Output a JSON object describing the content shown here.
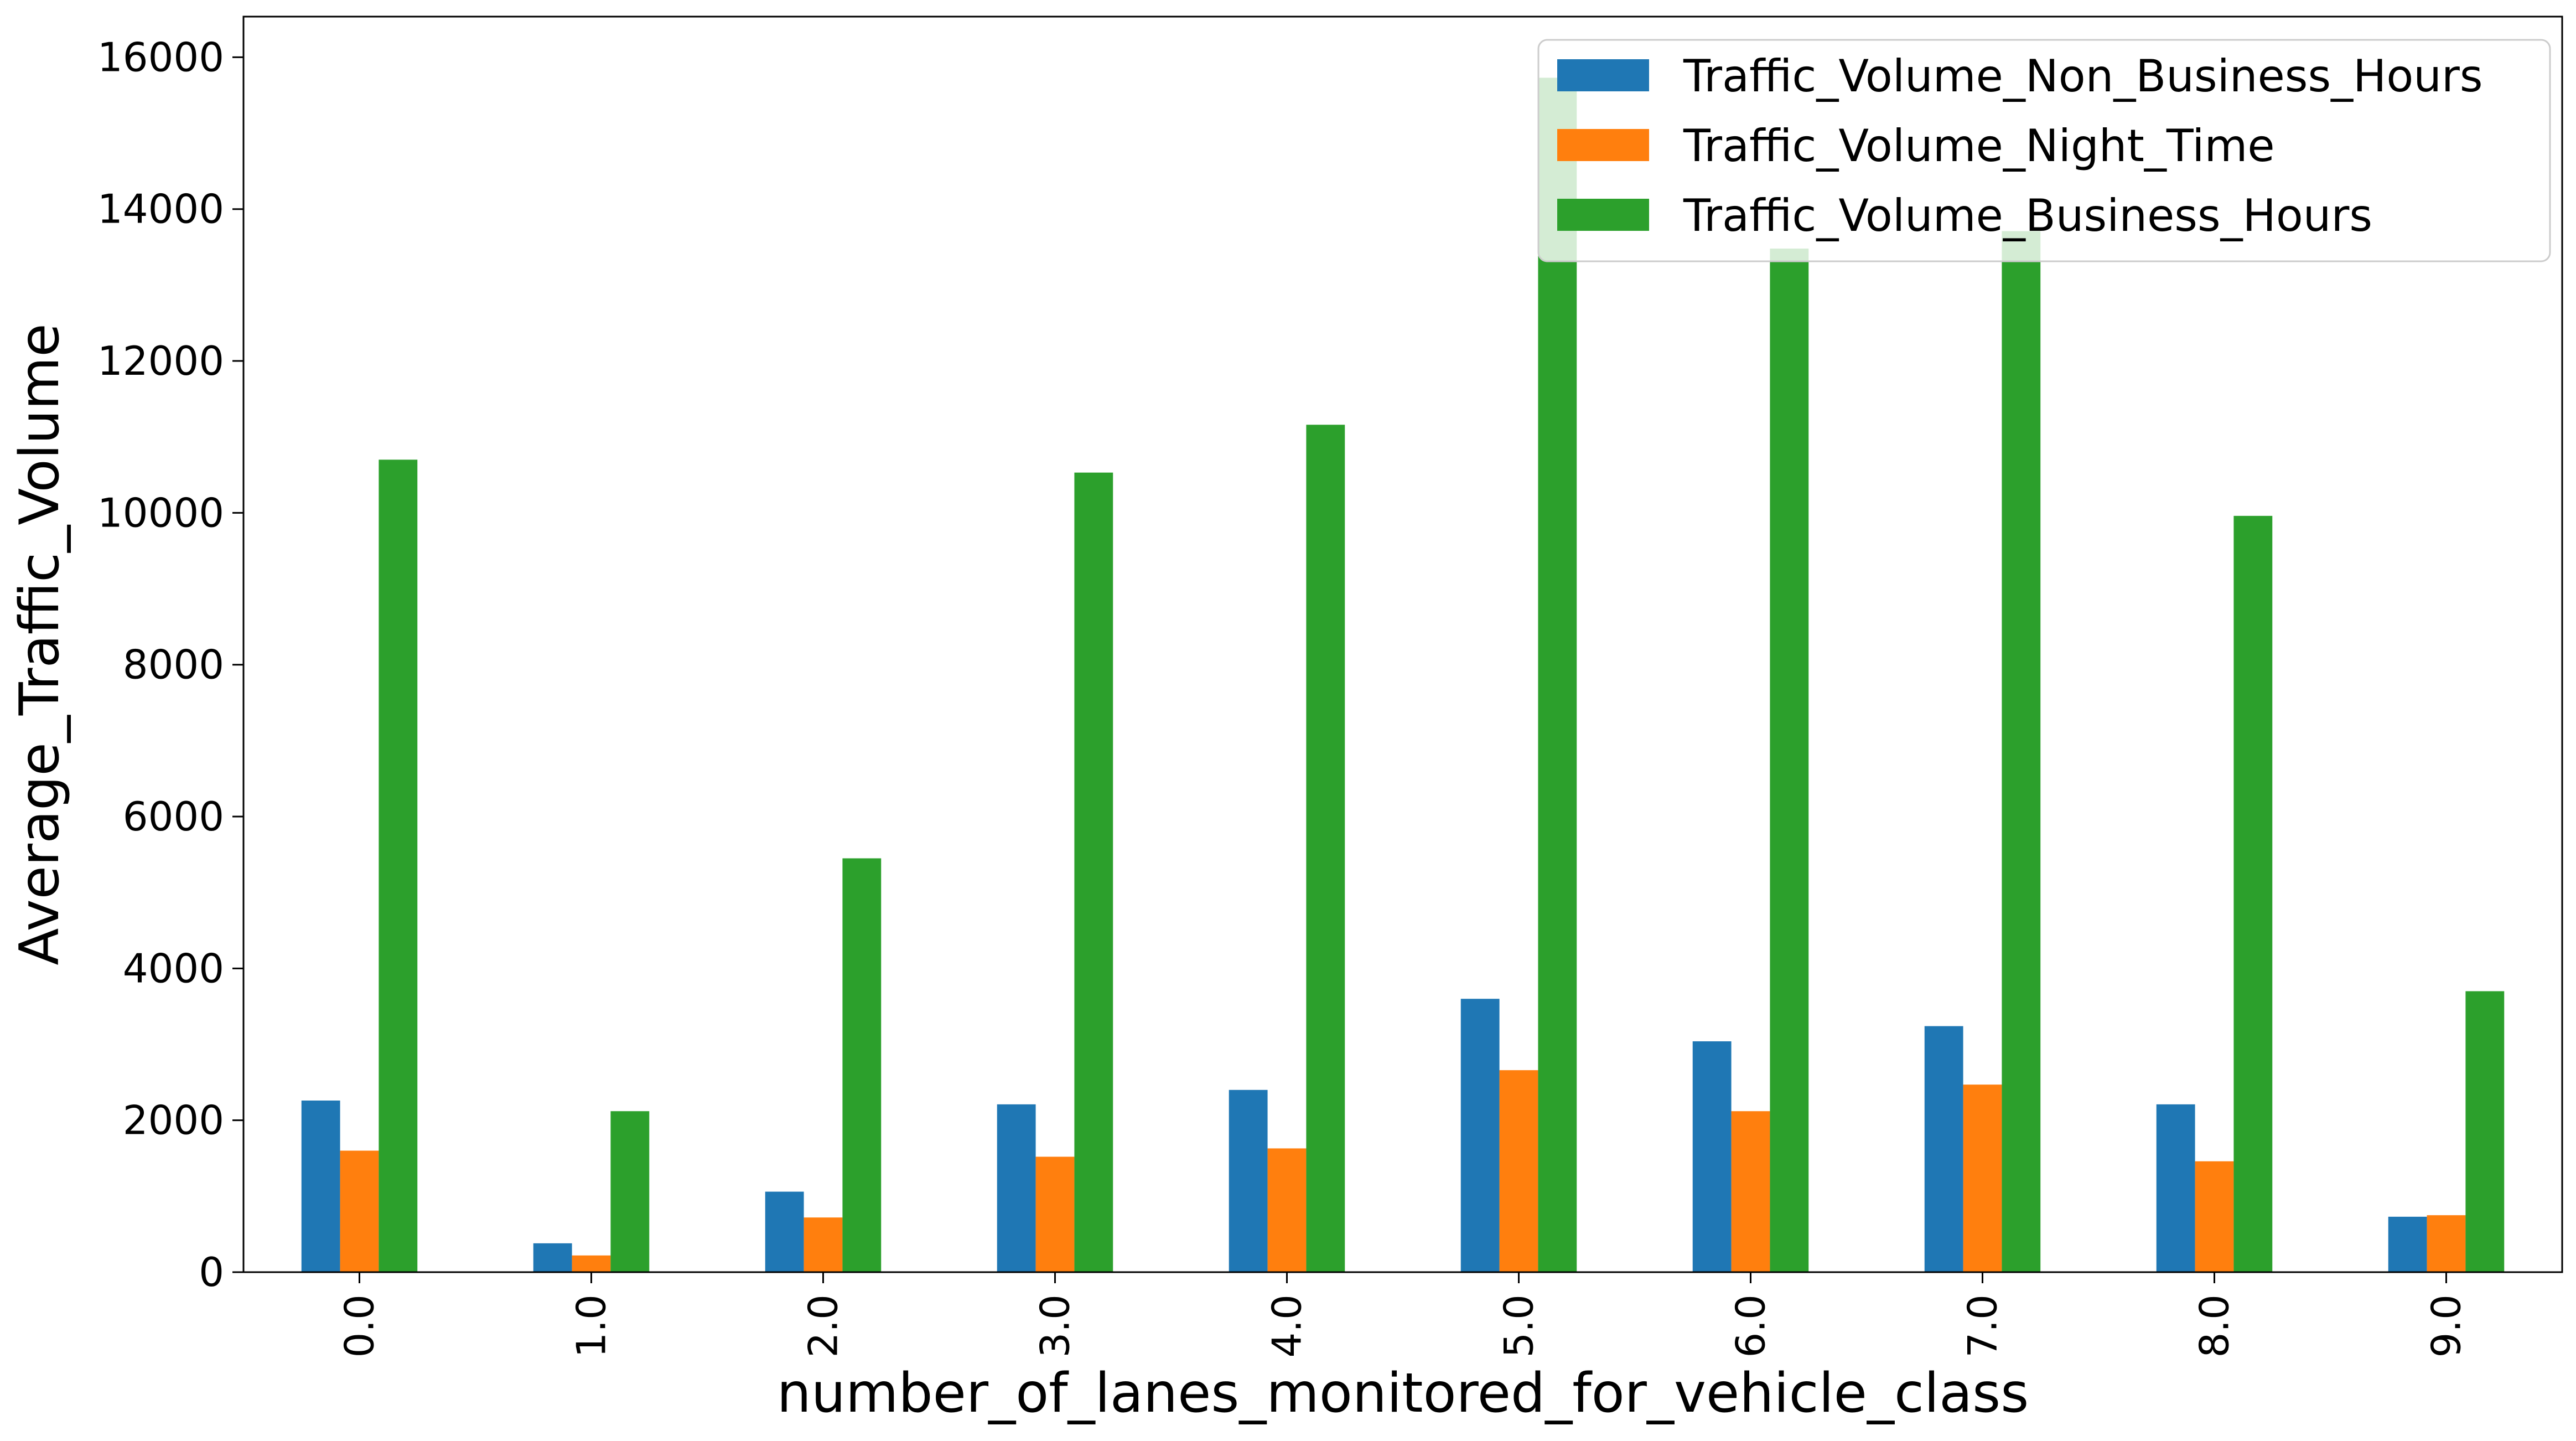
{
  "chart_data": {
    "type": "bar",
    "categories": [
      "0.0",
      "1.0",
      "2.0",
      "3.0",
      "4.0",
      "5.0",
      "6.0",
      "7.0",
      "8.0",
      "9.0"
    ],
    "series": [
      {
        "name": "Traffic_Volume_Non_Business_Hours",
        "color": "#1f77b4",
        "values": [
          2260,
          380,
          1060,
          2210,
          2400,
          3600,
          3040,
          3240,
          2210,
          730
        ]
      },
      {
        "name": "Traffic_Volume_Night_Time",
        "color": "#ff7f0e",
        "values": [
          1600,
          220,
          720,
          1520,
          1630,
          2660,
          2120,
          2470,
          1460,
          750
        ]
      },
      {
        "name": "Traffic_Volume_Business_Hours",
        "color": "#2ca02c",
        "values": [
          10700,
          2120,
          5450,
          10530,
          11160,
          15730,
          13480,
          13710,
          9960,
          3700
        ]
      }
    ],
    "xlabel": "number_of_lanes_monitored_for_vehicle_class",
    "ylabel": "Average_Traffic_Volume",
    "ylim": [
      0,
      16535
    ],
    "yticks": [
      0,
      2000,
      4000,
      6000,
      8000,
      10000,
      12000,
      14000,
      16000
    ],
    "grid": false,
    "legend_position": "top-right"
  }
}
